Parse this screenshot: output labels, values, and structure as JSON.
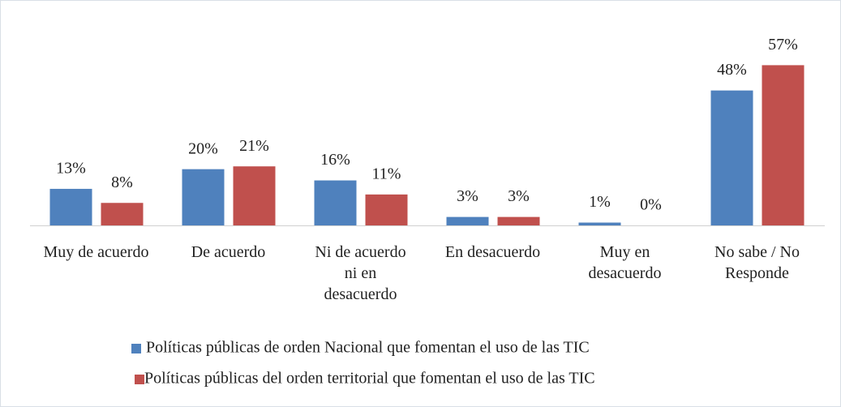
{
  "chart_data": {
    "type": "bar",
    "categories": [
      "Muy de acuerdo",
      "De acuerdo",
      "Ni de acuerdo ni en desacuerdo",
      "En desacuerdo",
      "Muy en desacuerdo",
      "No sabe / No Responde"
    ],
    "series": [
      {
        "name": "Políticas públicas de orden Nacional que fomentan el uso de las TIC",
        "color": "#4f81bd",
        "values": [
          13,
          20,
          16,
          3,
          1,
          48
        ],
        "value_labels": [
          "13%",
          "20%",
          "16%",
          "3%",
          "1%",
          "48%"
        ]
      },
      {
        "name": "Políticas públicas del orden territorial que fomentan el uso de las TIC",
        "color": "#c0504d",
        "values": [
          8,
          21,
          11,
          3,
          0,
          57
        ],
        "value_labels": [
          "8%",
          "21%",
          "11%",
          "3%",
          "0%",
          "57%"
        ]
      }
    ],
    "ylim": [
      0,
      60
    ],
    "legend": "bottom"
  }
}
